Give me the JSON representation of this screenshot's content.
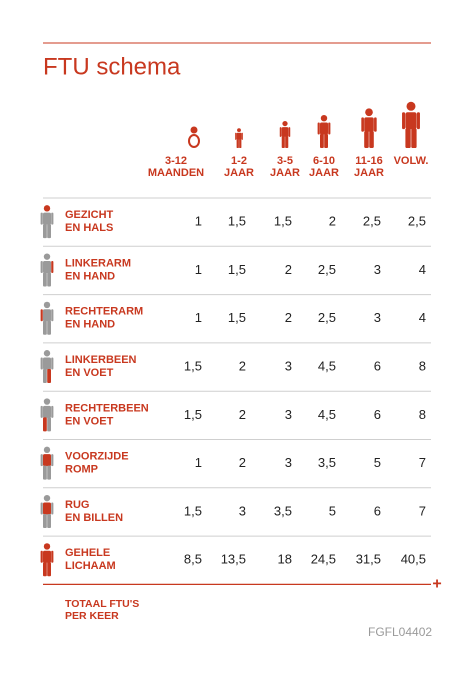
{
  "title": "FTU schema",
  "columns": [
    [
      "3-12",
      "MAANDEN"
    ],
    [
      "1-2",
      "JAAR"
    ],
    [
      "3-5",
      "JAAR"
    ],
    [
      "6-10",
      "JAAR"
    ],
    [
      "11-16",
      "JAAR"
    ],
    [
      "VOLW."
    ]
  ],
  "rows": [
    {
      "label": [
        "GEZICHT",
        "EN HALS"
      ],
      "values": [
        "1",
        "1,5",
        "1,5",
        "2",
        "2,5",
        "2,5"
      ]
    },
    {
      "label": [
        "LINKERARM",
        "EN HAND"
      ],
      "values": [
        "1",
        "1,5",
        "2",
        "2,5",
        "3",
        "4"
      ]
    },
    {
      "label": [
        "RECHTERARM",
        "EN HAND"
      ],
      "values": [
        "1",
        "1,5",
        "2",
        "2,5",
        "3",
        "4"
      ]
    },
    {
      "label": [
        "LINKERBEEN",
        "EN VOET"
      ],
      "values": [
        "1,5",
        "2",
        "3",
        "4,5",
        "6",
        "8"
      ]
    },
    {
      "label": [
        "RECHTERBEEN",
        "EN VOET"
      ],
      "values": [
        "1,5",
        "2",
        "3",
        "4,5",
        "6",
        "8"
      ]
    },
    {
      "label": [
        "VOORZIJDE",
        "ROMP"
      ],
      "values": [
        "1",
        "2",
        "3",
        "3,5",
        "5",
        "7"
      ]
    },
    {
      "label": [
        "RUG",
        "EN BILLEN"
      ],
      "values": [
        "1,5",
        "3",
        "3,5",
        "5",
        "6",
        "7"
      ]
    },
    {
      "label": [
        "GEHELE",
        "LICHAAM"
      ],
      "values": [
        "8,5",
        "13,5",
        "18",
        "24,5",
        "31,5",
        "40,5"
      ]
    }
  ],
  "total": {
    "symbol": "+",
    "label": [
      "TOTAAL FTU'S",
      "PER KEER"
    ]
  },
  "code": "FGFL04402"
}
